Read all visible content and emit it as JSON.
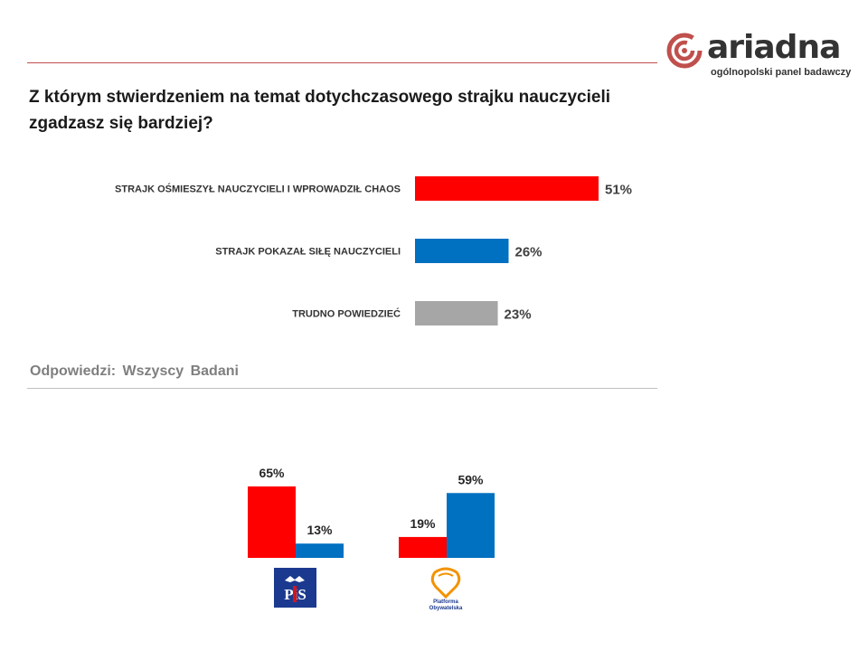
{
  "brand": {
    "name": "ariadna",
    "tagline": "ogólnopolski panel badawczy"
  },
  "question": "Z którym stwierdzeniem na temat dotychczasowego strajku nauczycieli zgadzasz się bardziej?",
  "respondents_label": "Odpowiedzi:  Wszyscy  Badani",
  "colors": {
    "red": "#ff0000",
    "blue": "#0070c0",
    "gray": "#a6a6a6",
    "brand_red": "#c0504d"
  },
  "party_logos": {
    "pis": {
      "text": "PiS",
      "icon": "pis-logo"
    },
    "po": {
      "text_line1": "Platforma",
      "text_line2": "Obywatelska",
      "icon": "po-logo"
    }
  },
  "chart_data": [
    {
      "type": "bar",
      "orientation": "horizontal",
      "title": "",
      "categories": [
        "STRAJK OŚMIESZYŁ NAUCZYCIELI I WPROWADZIŁ CHAOS",
        "STRAJK POKAZAŁ SIŁĘ NAUCZYCIELI",
        "TRUDNO POWIEDZIEĆ"
      ],
      "values": [
        51,
        26,
        23
      ],
      "value_labels": [
        "51%",
        "26%",
        "23%"
      ],
      "bar_colors": [
        "#ff0000",
        "#0070c0",
        "#a6a6a6"
      ],
      "xlim": [
        0,
        100
      ],
      "grid": false
    },
    {
      "type": "bar",
      "orientation": "vertical",
      "title": "",
      "categories": [
        "PiS",
        "Platforma Obywatelska"
      ],
      "series": [
        {
          "color": "#ff0000",
          "values": [
            65,
            19
          ],
          "value_labels": [
            "65%",
            "19%"
          ]
        },
        {
          "color": "#0070c0",
          "values": [
            13,
            59
          ],
          "value_labels": [
            "13%",
            "59%"
          ]
        }
      ],
      "ylim": [
        0,
        65
      ],
      "grid": false
    }
  ]
}
